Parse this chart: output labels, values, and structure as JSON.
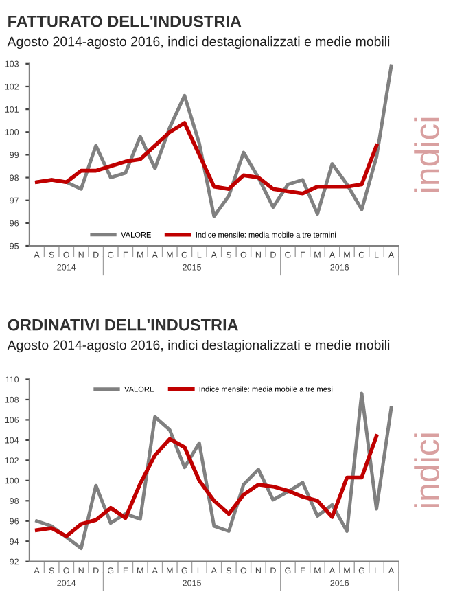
{
  "chart_data": [
    {
      "type": "line",
      "title": "FATTURATO DELL'INDUSTRIA",
      "subtitle": "Agosto 2014-agosto 2016, indici destagionalizzati e medie mobili",
      "categories": [
        "A",
        "S",
        "O",
        "N",
        "D",
        "G",
        "F",
        "M",
        "A",
        "M",
        "G",
        "L",
        "A",
        "S",
        "O",
        "N",
        "D",
        "G",
        "F",
        "M",
        "A",
        "M",
        "G",
        "L",
        "A"
      ],
      "series": [
        {
          "name": "VALORE",
          "color": "#808080",
          "values": [
            97.8,
            97.9,
            97.8,
            97.5,
            99.4,
            98.0,
            98.2,
            99.8,
            98.4,
            100.2,
            101.6,
            99.5,
            96.3,
            97.2,
            99.1,
            98.0,
            96.7,
            97.7,
            97.9,
            96.4,
            98.6,
            97.7,
            96.6,
            98.9,
            102.9
          ]
        },
        {
          "name": "Indice mensile: media mobile a tre termini",
          "color": "#c00000",
          "values": [
            97.8,
            97.9,
            97.8,
            98.3,
            98.3,
            98.5,
            98.7,
            98.8,
            99.4,
            100.0,
            100.4,
            99.0,
            97.6,
            97.5,
            98.1,
            98.0,
            97.5,
            97.4,
            97.3,
            97.6,
            97.6,
            97.6,
            97.7,
            99.4,
            null
          ]
        }
      ],
      "ylim": [
        95,
        103
      ],
      "yticks": [
        95,
        96,
        97,
        98,
        99,
        100,
        101,
        102,
        103
      ],
      "grid": false,
      "legend": "bottom",
      "marker": "none",
      "line_style": "solid",
      "annotations": [
        "2014",
        "2015",
        "2016",
        "indici"
      ]
    },
    {
      "type": "line",
      "title": "ORDINATIVI DELL'INDUSTRIA",
      "subtitle": "Agosto 2014-agosto 2016, indici destagionalizzati e medie mobili",
      "categories": [
        "A",
        "S",
        "O",
        "N",
        "D",
        "G",
        "F",
        "M",
        "A",
        "M",
        "G",
        "L",
        "A",
        "S",
        "O",
        "N",
        "D",
        "G",
        "F",
        "M",
        "A",
        "M",
        "G",
        "L",
        "A"
      ],
      "series": [
        {
          "name": "VALORE",
          "color": "#808080",
          "values": [
            96.0,
            95.5,
            94.4,
            93.3,
            99.5,
            95.8,
            96.7,
            96.2,
            106.3,
            105.0,
            101.3,
            103.7,
            95.5,
            95.0,
            99.6,
            101.1,
            98.1,
            98.9,
            99.8,
            96.5,
            97.6,
            95.0,
            108.6,
            97.2,
            107.2
          ]
        },
        {
          "name": "Indice mensile: media mobile a tre mesi",
          "color": "#c00000",
          "values": [
            95.1,
            95.3,
            94.5,
            95.7,
            96.1,
            97.3,
            96.3,
            99.7,
            102.5,
            104.1,
            103.3,
            100.0,
            98.0,
            96.7,
            98.6,
            99.6,
            99.4,
            99.0,
            98.4,
            98.0,
            96.4,
            100.3,
            100.3,
            104.4,
            null
          ]
        }
      ],
      "ylim": [
        92,
        110
      ],
      "yticks": [
        92,
        94,
        96,
        98,
        100,
        102,
        104,
        106,
        108,
        110
      ],
      "grid": false,
      "legend": "top",
      "marker": "none",
      "line_style": "solid",
      "annotations": [
        "2014",
        "2015",
        "2016",
        "indici"
      ]
    }
  ]
}
